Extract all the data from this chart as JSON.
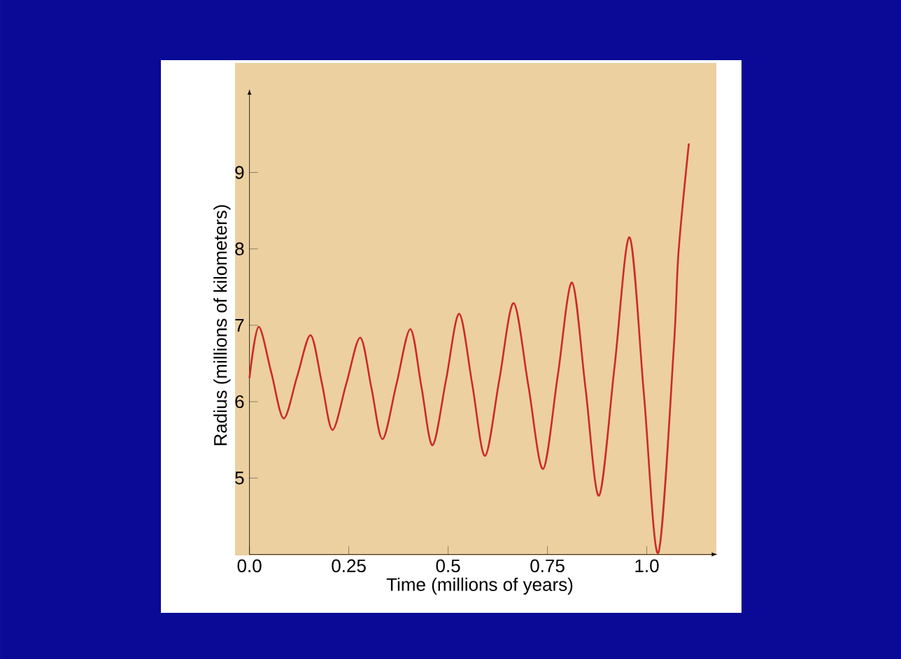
{
  "chart_data": {
    "type": "line",
    "xlabel": "Time (millions of years)",
    "ylabel": "Radius (millions of kilometers)",
    "color": "#cc2a2a",
    "x": [
      0,
      0.023,
      0.055,
      0.086,
      0.12,
      0.154,
      0.182,
      0.209,
      0.244,
      0.279,
      0.307,
      0.335,
      0.37,
      0.405,
      0.433,
      0.461,
      0.495,
      0.528,
      0.561,
      0.593,
      0.629,
      0.665,
      0.702,
      0.739,
      0.776,
      0.812,
      0.846,
      0.88,
      0.919,
      0.957,
      0.993,
      1.029,
      1.068,
      1.08,
      1.106
    ],
    "values": [
      6.31,
      6.98,
      6.38,
      5.78,
      6.33,
      6.87,
      6.25,
      5.63,
      6.24,
      6.84,
      6.18,
      5.51,
      6.23,
      6.95,
      6.19,
      5.43,
      6.29,
      7.15,
      6.22,
      5.29,
      6.29,
      7.29,
      6.21,
      5.12,
      6.34,
      7.56,
      6.17,
      4.77,
      6.46,
      8.15,
      6.09,
      4.02,
      6.7,
      7.96,
      9.38
    ],
    "xlim": [
      0,
      1.16
    ],
    "ylim": [
      4,
      10
    ],
    "xticks": [
      {
        "value": 0,
        "label": "0.0"
      },
      0.25,
      0.5,
      0.75,
      {
        "value": 1,
        "label": "1.0"
      }
    ],
    "yticks": [
      5,
      6,
      7,
      8,
      9
    ]
  }
}
